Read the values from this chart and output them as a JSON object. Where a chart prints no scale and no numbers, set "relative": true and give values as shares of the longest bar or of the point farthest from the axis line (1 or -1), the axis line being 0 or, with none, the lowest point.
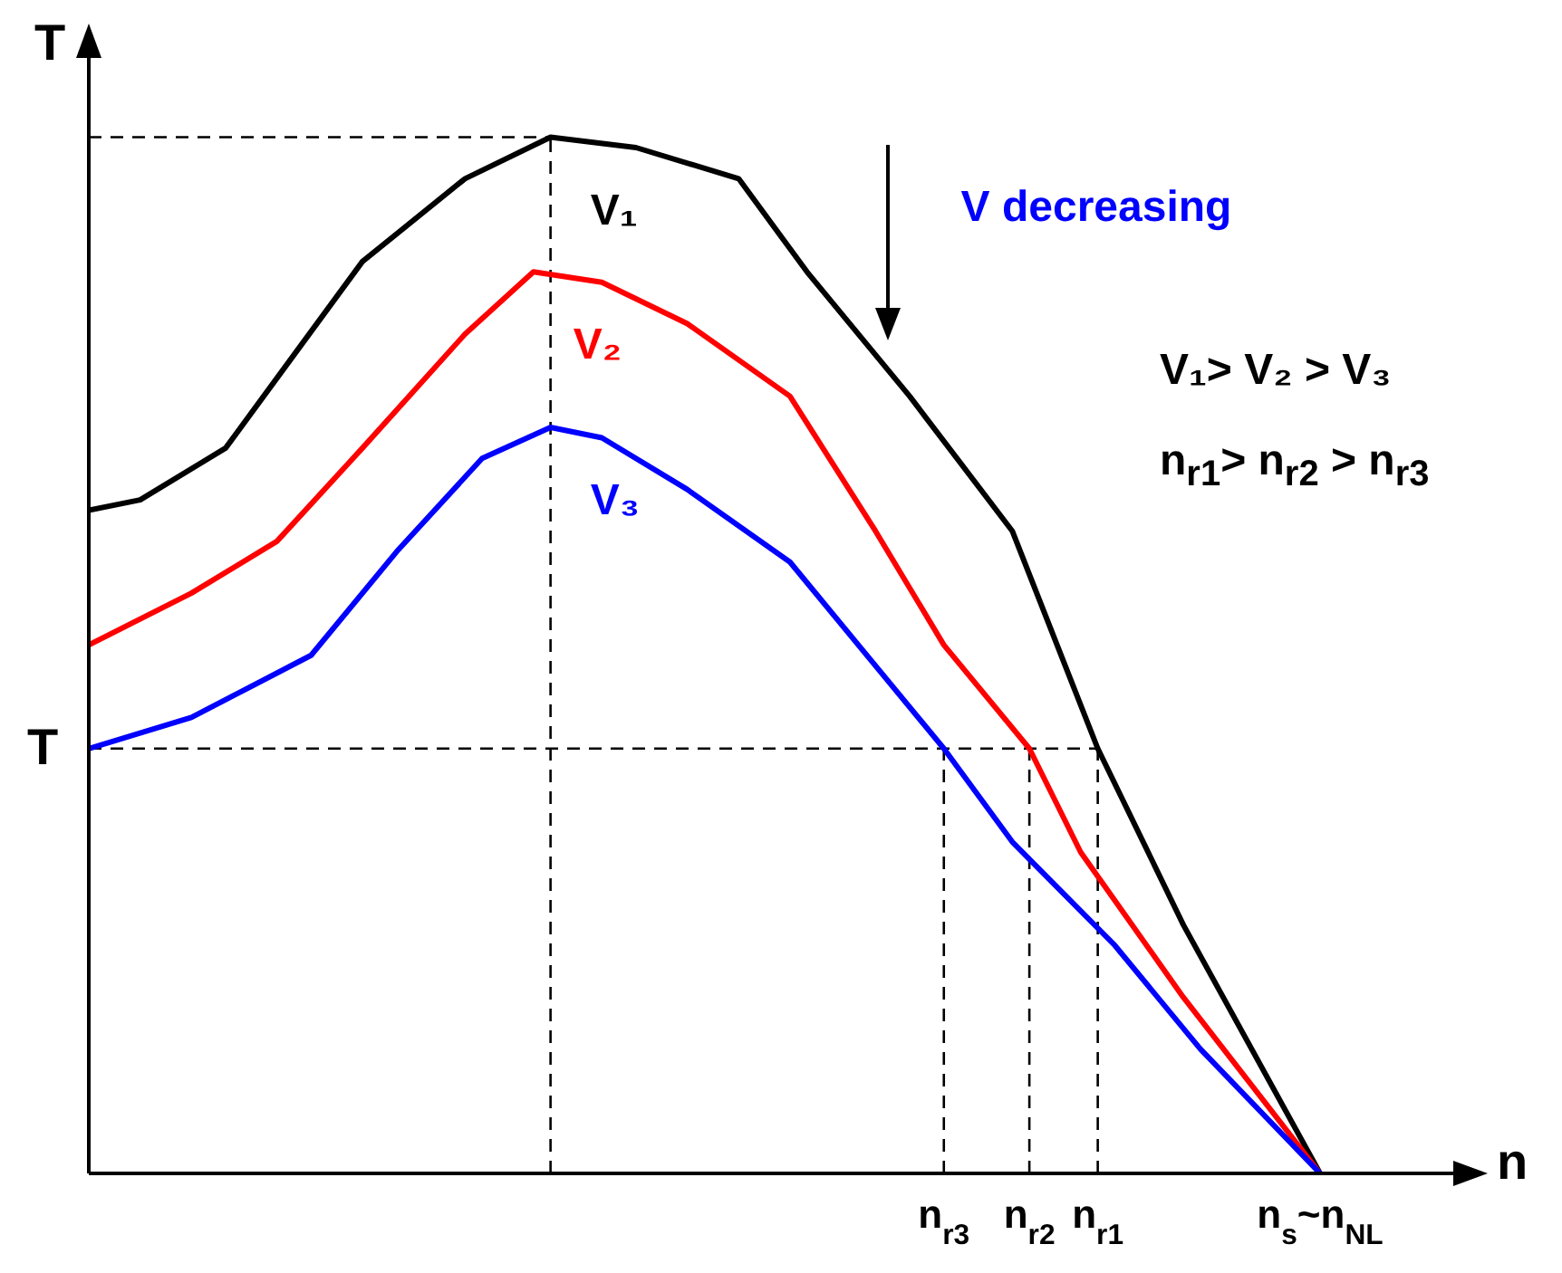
{
  "chart_data": {
    "type": "line",
    "relative": true,
    "xlabel": "n",
    "ylabel": "T",
    "marker": "none",
    "categories": [
      null,
      null,
      null,
      null,
      null,
      null,
      null,
      null,
      null,
      null,
      null,
      null,
      null,
      null,
      null,
      null,
      null,
      null,
      null,
      null,
      null,
      null,
      null,
      null,
      null,
      null,
      null,
      null,
      null,
      null,
      null,
      null,
      null,
      null,
      null,
      null,
      null,
      null,
      null,
      null,
      null,
      null,
      null,
      null,
      null,
      null,
      null,
      null,
      null,
      null,
      "n$_{r3}$",
      null,
      null,
      null,
      null,
      "n$_{r2}$",
      null,
      null,
      null,
      "n$_{r1}$",
      null,
      null,
      null,
      null,
      null,
      null,
      null,
      null,
      null,
      null,
      null,
      null,
      "n$_{s}$~n$_{NL}$",
      null,
      null,
      null,
      null,
      null,
      null,
      null,
      null
    ],
    "series": [
      {
        "name": "V₁",
        "color": "#000000",
        "values": [
          0.64,
          null,
          null,
          0.65,
          null,
          null,
          null,
          null,
          0.7,
          null,
          null,
          null,
          0.79,
          null,
          null,
          null,
          0.88,
          null,
          null,
          null,
          null,
          null,
          0.96,
          null,
          null,
          null,
          null,
          1,
          null,
          null,
          null,
          null,
          0.99,
          null,
          null,
          null,
          null,
          null,
          0.96,
          null,
          null,
          null,
          0.87,
          null,
          null,
          null,
          null,
          null,
          0.75,
          null,
          null,
          null,
          null,
          null,
          0.62,
          null,
          null,
          null,
          null,
          0.41,
          null,
          null,
          null,
          null,
          0.24,
          null,
          null,
          null,
          null,
          null,
          null,
          null,
          0,
          null,
          null,
          null,
          null,
          null,
          null,
          null,
          null
        ]
      },
      {
        "name": "V₂",
        "color": "#ff0000",
        "values": [
          0.51,
          null,
          null,
          null,
          null,
          null,
          0.56,
          null,
          null,
          null,
          null,
          0.61,
          null,
          null,
          null,
          null,
          0.7,
          null,
          null,
          null,
          null,
          null,
          0.81,
          null,
          null,
          null,
          0.87,
          null,
          null,
          null,
          0.86,
          null,
          null,
          null,
          null,
          0.82,
          null,
          null,
          null,
          null,
          null,
          0.75,
          null,
          null,
          null,
          null,
          0.62,
          null,
          null,
          null,
          0.51,
          null,
          null,
          null,
          null,
          0.41,
          null,
          null,
          0.31,
          null,
          null,
          null,
          null,
          null,
          0.17,
          null,
          null,
          null,
          null,
          null,
          null,
          null,
          0,
          null,
          null,
          null,
          null,
          null,
          null,
          null,
          null
        ]
      },
      {
        "name": "V₃",
        "color": "#0000ff",
        "values": [
          0.41,
          null,
          null,
          null,
          null,
          null,
          0.44,
          null,
          null,
          null,
          null,
          null,
          null,
          0.5,
          null,
          null,
          null,
          null,
          0.6,
          null,
          null,
          null,
          null,
          0.69,
          null,
          null,
          null,
          0.72,
          null,
          null,
          0.71,
          null,
          null,
          null,
          null,
          0.66,
          null,
          null,
          null,
          null,
          null,
          0.59,
          null,
          null,
          null,
          0.51,
          null,
          null,
          null,
          null,
          0.41,
          null,
          null,
          null,
          0.32,
          null,
          null,
          null,
          null,
          null,
          0.22,
          null,
          null,
          null,
          null,
          0.12,
          null,
          null,
          null,
          null,
          null,
          null,
          0,
          null,
          null,
          null,
          null,
          null,
          null,
          null,
          null
        ]
      }
    ],
    "ref_lines": [
      {
        "axis": "y",
        "value": 1,
        "color": "#000000",
        "line_style": "dashed"
      },
      {
        "axis": "y",
        "value": 0.41,
        "label": "T",
        "color": "#000000",
        "line_style": "dashed"
      },
      {
        "axis": "x",
        "value": "n$_{r3}$",
        "color": "#000000",
        "line_style": "dashed"
      },
      {
        "axis": "x",
        "value": "n$_{r2}$",
        "color": "#000000",
        "line_style": "dashed"
      },
      {
        "axis": "x",
        "value": "n$_{r1}$",
        "color": "#000000",
        "line_style": "dashed"
      }
    ],
    "annotations": [
      "V decreasing",
      "V₁> V₂ > V₃",
      "n$_{r1}$> n$_{r2}$ > n$_{r3}$"
    ]
  }
}
